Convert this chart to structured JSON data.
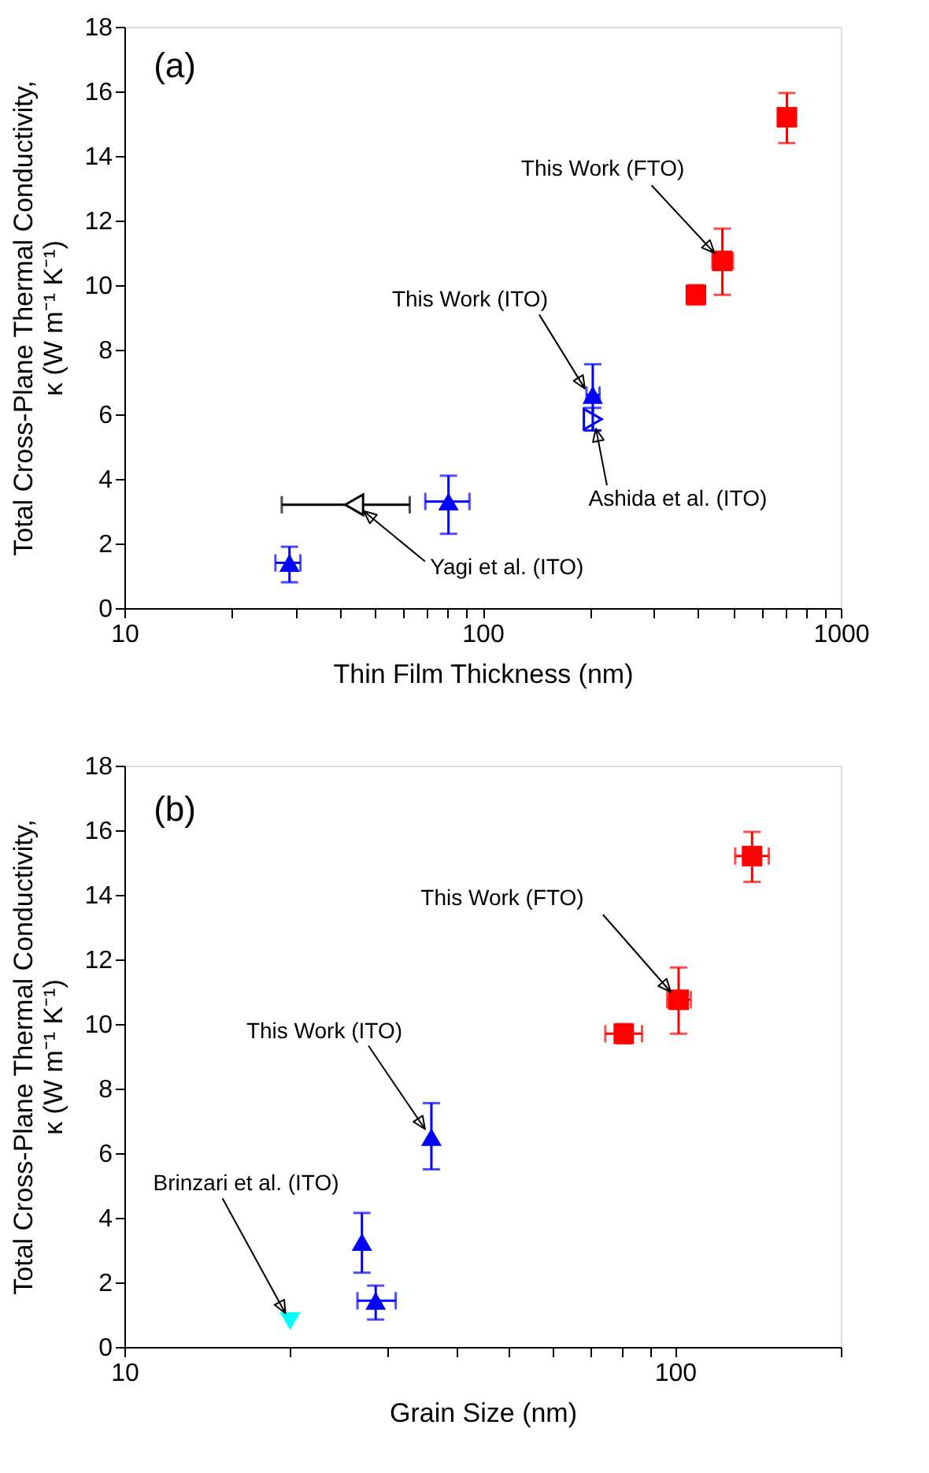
{
  "chart_data": [
    {
      "type": "scatter",
      "xlabel": "Thin Film Thickness (nm)",
      "ylabel": "Total Cross-Plane Thermal Conductivity, κ (W m⁻¹ K⁻¹)",
      "log": "x",
      "xlim": [
        10,
        1000
      ],
      "xticks": [
        10,
        {
          "value": 20,
          "label": null
        },
        {
          "value": 30,
          "label": null
        },
        {
          "value": 40,
          "label": null
        },
        {
          "value": 50,
          "label": null
        },
        {
          "value": 60,
          "label": null
        },
        {
          "value": 70,
          "label": null
        },
        {
          "value": 80,
          "label": null
        },
        {
          "value": 90,
          "label": null
        },
        100,
        {
          "value": 200,
          "label": null
        },
        {
          "value": 300,
          "label": null
        },
        {
          "value": 400,
          "label": null
        },
        {
          "value": 500,
          "label": null
        },
        {
          "value": 600,
          "label": null
        },
        {
          "value": 700,
          "label": null
        },
        {
          "value": 800,
          "label": null
        },
        {
          "value": 900,
          "label": null
        },
        1000
      ],
      "ylim": [
        0,
        18
      ],
      "yticks": [
        0,
        2,
        4,
        6,
        8,
        10,
        12,
        14,
        16,
        18
      ],
      "annotations": [
        "(a)",
        {
          "text": "This Work (FTO)",
          "x": 467,
          "y": 10.75
        },
        {
          "text": "This Work (ITO)",
          "x": 203,
          "y": 6.6
        },
        {
          "text": "Ashida et al. (ITO)",
          "x": 203,
          "y": 5.85
        },
        {
          "text": "Yagi et al. (ITO)",
          "x": 43.8,
          "y": 3.2
        }
      ],
      "series": [
        {
          "color": "#000000",
          "marker": "triangle-left",
          "x": [
            43.8
          ],
          "values": [
            3.2
          ],
          "xerrors": [
            [
              27.5,
              62.6
            ]
          ]
        },
        {
          "color": "#0000ff",
          "marker": "triangle-right",
          "x": [
            203
          ],
          "values": [
            5.85
          ],
          "errors": [
            [
              5.5,
              6.2
            ]
          ]
        },
        {
          "color": "#0000ff",
          "marker": "triangle",
          "x": [
            28.9,
            80.3,
            203
          ],
          "values": [
            1.4,
            3.3,
            6.6
          ],
          "errors": [
            [
              0.8,
              1.9
            ],
            [
              2.3,
              4.1
            ],
            [
              5.5,
              7.55
            ]
          ],
          "xerrors": [
            [
              26.4,
              31
            ],
            [
              69.2,
              91.9
            ],
            [
              195,
              212
            ]
          ]
        },
        {
          "color": "#ff0000",
          "marker": "square",
          "x": [
            394,
            467,
            707
          ],
          "values": [
            9.7,
            10.75,
            15.2
          ],
          "errors": [
            [
              9.4,
              10
            ],
            [
              9.7,
              11.75
            ],
            [
              14.4,
              15.95
            ]
          ],
          "xerrors": [
            null,
            [
              438,
              500
            ],
            null
          ]
        }
      ]
    },
    {
      "type": "scatter",
      "xlabel": "Grain Size (nm)",
      "ylabel": "Total Cross-Plane Thermal Conductivity, κ (W m⁻¹ K⁻¹)",
      "log": "x",
      "xlim": [
        10,
        200
      ],
      "xticks": [
        10,
        {
          "value": 20,
          "label": null
        },
        {
          "value": 30,
          "label": null
        },
        {
          "value": 40,
          "label": null
        },
        {
          "value": 50,
          "label": null
        },
        {
          "value": 60,
          "label": null
        },
        {
          "value": 70,
          "label": null
        },
        {
          "value": 80,
          "label": null
        },
        {
          "value": 90,
          "label": null
        },
        100,
        {
          "value": 200,
          "label": null
        }
      ],
      "ylim": [
        0,
        18
      ],
      "yticks": [
        0,
        2,
        4,
        6,
        8,
        10,
        12,
        14,
        16,
        18
      ],
      "annotations": [
        "(b)",
        {
          "text": "This Work (FTO)",
          "x": 101.5,
          "y": 10.75
        },
        {
          "text": "This Work (ITO)",
          "x": 36.1,
          "y": 6.5
        },
        {
          "text": "Brinzari et al. (ITO)",
          "x": 20,
          "y": 0.8
        }
      ],
      "series": [
        {
          "color": "#00ffff",
          "marker": "triangle-down",
          "x": [
            20
          ],
          "values": [
            0.8
          ]
        },
        {
          "color": "#0000ff",
          "marker": "triangle",
          "x": [
            27.0,
            28.6,
            36.1
          ],
          "values": [
            3.25,
            1.43,
            6.5
          ],
          "errors": [
            [
              2.3,
              4.15
            ],
            [
              0.85,
              1.9
            ],
            [
              5.5,
              7.55
            ]
          ],
          "xerrors": [
            null,
            [
              26.5,
              31.1
            ],
            null
          ]
        },
        {
          "color": "#ff0000",
          "marker": "square",
          "x": [
            80.7,
            101.5,
            138
          ],
          "values": [
            9.7,
            10.75,
            15.2
          ],
          "errors": [
            [
              9.4,
              10
            ],
            [
              9.7,
              11.75
            ],
            [
              14.4,
              15.95
            ]
          ],
          "xerrors": [
            [
              74.7,
              87.1
            ],
            [
              96.8,
              106.8
            ],
            [
              128.6,
              148
            ]
          ]
        }
      ]
    }
  ]
}
